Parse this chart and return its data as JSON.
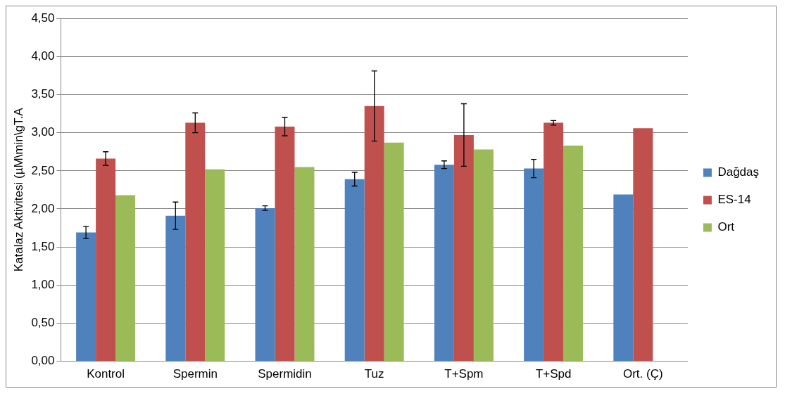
{
  "chart_data": {
    "type": "bar",
    "ylabel": "Katalaz Aktivitesi (µM\\min\\gT.A",
    "categories": [
      "Kontrol",
      "Spermin",
      "Spermidin",
      "Tuz",
      "T+Spm",
      "T+Spd",
      "Ort. (Ç)"
    ],
    "series": [
      {
        "name": "Dağdaş",
        "color": "#4f81bd",
        "values": [
          1.69,
          1.91,
          2.01,
          2.39,
          2.58,
          2.53,
          2.19
        ],
        "errors": [
          0.08,
          0.18,
          0.03,
          0.09,
          0.05,
          0.12,
          null
        ]
      },
      {
        "name": "ES-14",
        "color": "#c0504d",
        "values": [
          2.66,
          3.13,
          3.08,
          3.35,
          2.97,
          3.13,
          3.06
        ],
        "errors": [
          0.09,
          0.13,
          0.12,
          0.46,
          0.41,
          0.03,
          null
        ]
      },
      {
        "name": "Ort",
        "color": "#9bbb59",
        "values": [
          2.18,
          2.52,
          2.55,
          2.87,
          2.78,
          2.83,
          null
        ]
      }
    ],
    "ylim": [
      0,
      4.5
    ],
    "yticks": [
      {
        "value": 0,
        "label": "0,00"
      },
      {
        "value": 0.5,
        "label": "0,50"
      },
      {
        "value": 1,
        "label": "1,00"
      },
      {
        "value": 1.5,
        "label": "1,50"
      },
      {
        "value": 2,
        "label": "2,00"
      },
      {
        "value": 2.5,
        "label": "2,50"
      },
      {
        "value": 3,
        "label": "3,00"
      },
      {
        "value": 3.5,
        "label": "3,50"
      },
      {
        "value": 4,
        "label": "4,00"
      },
      {
        "value": 4.5,
        "label": "4,50"
      }
    ],
    "grid": "y",
    "legend": "right"
  }
}
